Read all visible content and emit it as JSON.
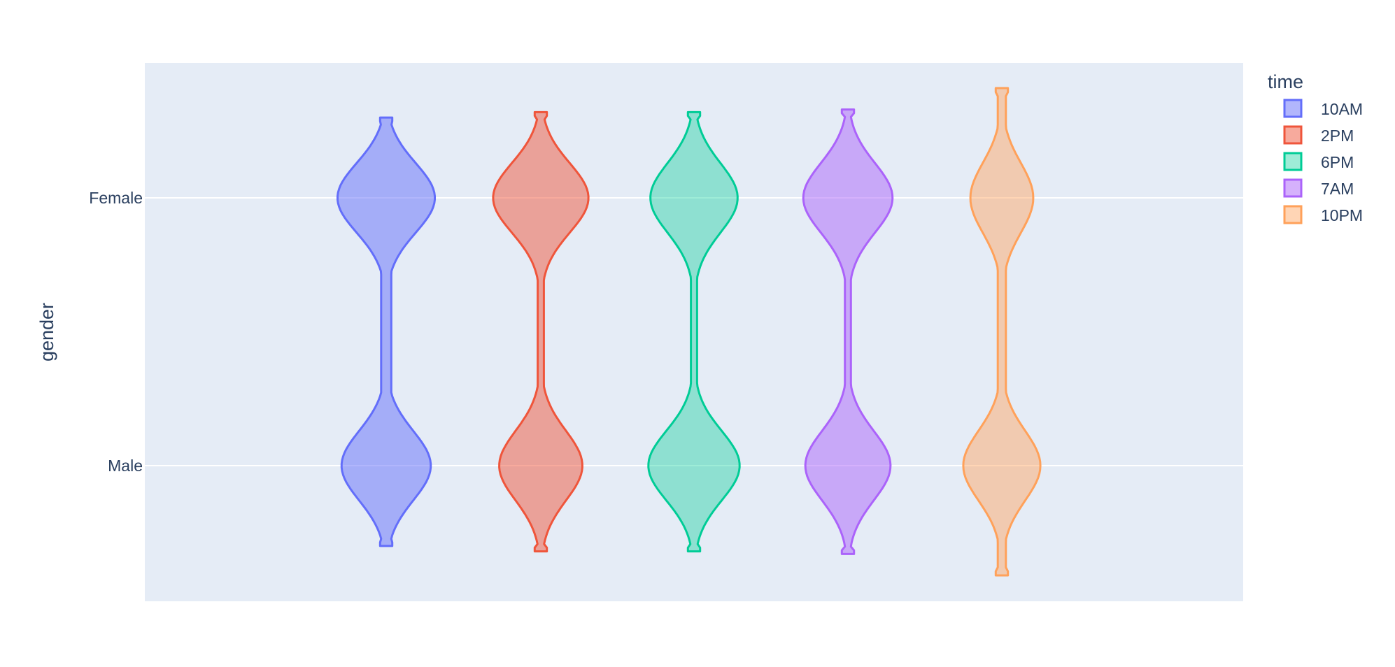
{
  "chart_data": {
    "type": "violin",
    "orientation": "vertical",
    "title": "",
    "xlabel": "",
    "ylabel": "gender",
    "categories": [
      "Female",
      "Male"
    ],
    "yaxis": {
      "range": [
        -0.5,
        1.5
      ],
      "ticks": [
        "Female",
        "Male"
      ],
      "grid": true
    },
    "legend": {
      "title": "time",
      "placement": "top-right"
    },
    "background": "#e5ecf6",
    "gridcolor": "#ffffff",
    "series": [
      {
        "name": "10AM",
        "color": "#636efa",
        "fill": "rgba(99,110,250,0.5)",
        "range": [
          -0.3,
          1.3
        ],
        "female_halfwidth": 0.48,
        "male_halfwidth": 0.44,
        "waist_halfwidth": 0.05
      },
      {
        "name": "2PM",
        "color": "#ef553b",
        "fill": "rgba(239,85,59,0.5)",
        "range": [
          -0.32,
          1.32
        ],
        "female_halfwidth": 0.47,
        "male_halfwidth": 0.41,
        "waist_halfwidth": 0.03
      },
      {
        "name": "6PM",
        "color": "#00cc96",
        "fill": "rgba(0,204,150,0.38)",
        "range": [
          -0.32,
          1.32
        ],
        "female_halfwidth": 0.43,
        "male_halfwidth": 0.45,
        "waist_halfwidth": 0.03
      },
      {
        "name": "7AM",
        "color": "#ab63fa",
        "fill": "rgba(171,99,250,0.5)",
        "range": [
          -0.33,
          1.33
        ],
        "female_halfwidth": 0.44,
        "male_halfwidth": 0.42,
        "waist_halfwidth": 0.03
      },
      {
        "name": "10PM",
        "color": "#FFA15A",
        "fill": "rgba(255,161,90,0.45)",
        "range": [
          -0.41,
          1.41
        ],
        "female_halfwidth": 0.31,
        "male_halfwidth": 0.38,
        "waist_halfwidth": 0.04
      }
    ]
  }
}
